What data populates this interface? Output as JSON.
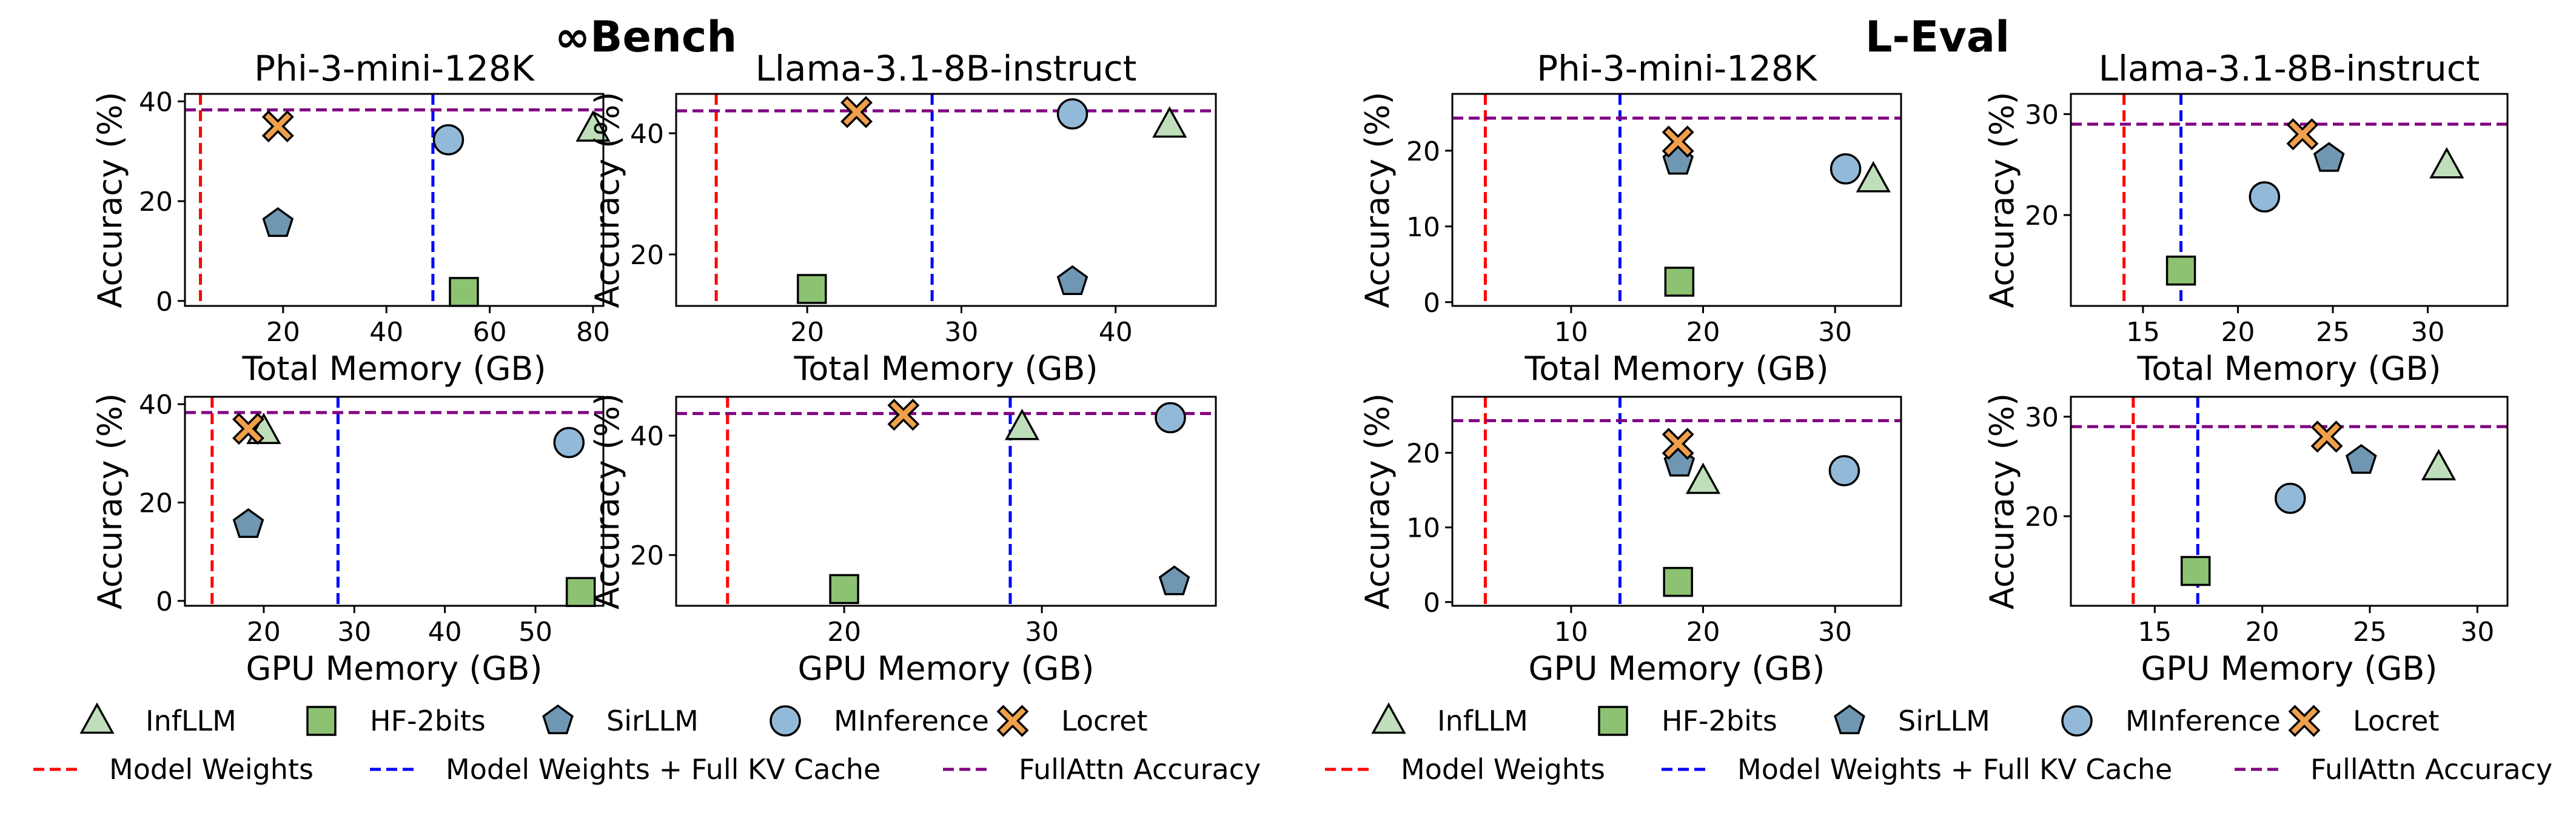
{
  "groups": [
    {
      "title": "∞Bench"
    },
    {
      "title": "L-Eval"
    }
  ],
  "colors": {
    "InfLLM": "#bfdfbb",
    "HF-2bits": "#8dc273",
    "SirLLM": "#6f97b3",
    "MInference": "#93b9d8",
    "Locret": "#f0a04b",
    "model_weights": "#ff0000",
    "full_kv": "#0000ff",
    "fullattn": "#800080"
  },
  "legend": {
    "markers": [
      {
        "name": "InfLLM",
        "shape": "triangle"
      },
      {
        "name": "HF-2bits",
        "shape": "square"
      },
      {
        "name": "SirLLM",
        "shape": "pentagon"
      },
      {
        "name": "MInference",
        "shape": "circle"
      },
      {
        "name": "Locret",
        "shape": "x"
      }
    ],
    "lines": [
      {
        "name": "Model Weights",
        "key": "model_weights"
      },
      {
        "name": "Model Weights + Full KV Cache",
        "key": "full_kv"
      },
      {
        "name": "FullAttn Accuracy",
        "key": "fullattn"
      }
    ]
  },
  "chart_data": [
    {
      "type": "scatter",
      "group": 0,
      "title": "Phi-3-mini-128K",
      "xlabel": "Total Memory (GB)",
      "ylabel": "Accuracy (%)",
      "xlim": [
        1,
        82
      ],
      "ylim": [
        -1,
        41.5
      ],
      "xticks": [
        20,
        40,
        60,
        80
      ],
      "yticks": [
        0,
        20,
        40
      ],
      "vlines": {
        "model_weights": 4,
        "full_kv": 49
      },
      "hline": 38.3,
      "points": [
        {
          "method": "InfLLM",
          "x": 80,
          "y": 34.5
        },
        {
          "method": "HF-2bits",
          "x": 55,
          "y": 1.8
        },
        {
          "method": "SirLLM",
          "x": 19,
          "y": 15.5
        },
        {
          "method": "MInference",
          "x": 52,
          "y": 32.3
        },
        {
          "method": "Locret",
          "x": 19,
          "y": 35
        }
      ]
    },
    {
      "type": "scatter",
      "group": 0,
      "title": "Llama-3.1-8B-instruct",
      "xlabel": "Total Memory (GB)",
      "ylabel": "Accuracy (%)",
      "xlim": [
        11.5,
        46.5
      ],
      "ylim": [
        11.5,
        46.5
      ],
      "xticks": [
        20,
        30,
        40
      ],
      "yticks": [
        20,
        40
      ],
      "vlines": {
        "model_weights": 14.1,
        "full_kv": 28.1
      },
      "hline": 43.7,
      "points": [
        {
          "method": "InfLLM",
          "x": 43.5,
          "y": 41.4
        },
        {
          "method": "HF-2bits",
          "x": 20.3,
          "y": 14.3
        },
        {
          "method": "SirLLM",
          "x": 37.2,
          "y": 15.5
        },
        {
          "method": "MInference",
          "x": 37.2,
          "y": 43.2
        },
        {
          "method": "Locret",
          "x": 23.2,
          "y": 43.5
        }
      ]
    },
    {
      "type": "scatter",
      "group": 1,
      "title": "Phi-3-mini-128K",
      "xlabel": "Total Memory (GB)",
      "ylabel": "Accuracy (%)",
      "xlim": [
        1,
        35
      ],
      "ylim": [
        -0.5,
        27.5
      ],
      "xticks": [
        10,
        20,
        30
      ],
      "yticks": [
        0,
        10,
        20
      ],
      "vlines": {
        "model_weights": 3.5,
        "full_kv": 13.7
      },
      "hline": 24.3,
      "points": [
        {
          "method": "InfLLM",
          "x": 32.9,
          "y": 16.2
        },
        {
          "method": "HF-2bits",
          "x": 18.2,
          "y": 2.7
        },
        {
          "method": "SirLLM",
          "x": 18.1,
          "y": 18.6
        },
        {
          "method": "MInference",
          "x": 30.8,
          "y": 17.6
        },
        {
          "method": "Locret",
          "x": 18.1,
          "y": 21.2
        }
      ]
    },
    {
      "type": "scatter",
      "group": 1,
      "title": "Llama-3.1-8B-instruct",
      "xlabel": "Total Memory (GB)",
      "ylabel": "Accuracy (%)",
      "xlim": [
        11.2,
        34.2
      ],
      "ylim": [
        11,
        32
      ],
      "xticks": [
        15,
        20,
        25,
        30
      ],
      "yticks": [
        20,
        30
      ],
      "vlines": {
        "model_weights": 14,
        "full_kv": 17
      },
      "hline": 29,
      "points": [
        {
          "method": "InfLLM",
          "x": 31,
          "y": 24.9
        },
        {
          "method": "HF-2bits",
          "x": 17,
          "y": 14.5
        },
        {
          "method": "SirLLM",
          "x": 24.8,
          "y": 25.6
        },
        {
          "method": "MInference",
          "x": 21.4,
          "y": 21.8
        },
        {
          "method": "Locret",
          "x": 23.4,
          "y": 28
        }
      ]
    },
    {
      "type": "scatter",
      "group": 0,
      "title": "",
      "xlabel": "GPU Memory (GB)",
      "ylabel": "Accuracy (%)",
      "xlim": [
        11.3,
        57.5
      ],
      "ylim": [
        -1,
        41.5
      ],
      "xticks": [
        20,
        30,
        40,
        50
      ],
      "yticks": [
        0,
        20,
        40
      ],
      "vlines": {
        "model_weights": 14.3,
        "full_kv": 28.2
      },
      "hline": 38.3,
      "points": [
        {
          "method": "InfLLM",
          "x": 20,
          "y": 34.5
        },
        {
          "method": "HF-2bits",
          "x": 55,
          "y": 1.8
        },
        {
          "method": "SirLLM",
          "x": 18.3,
          "y": 15.5
        },
        {
          "method": "MInference",
          "x": 53.7,
          "y": 32.2
        },
        {
          "method": "Locret",
          "x": 18.3,
          "y": 35
        }
      ]
    },
    {
      "type": "scatter",
      "group": 0,
      "title": "",
      "xlabel": "GPU Memory (GB)",
      "ylabel": "Accuracy (%)",
      "xlim": [
        11.5,
        38.8
      ],
      "ylim": [
        11.5,
        46.5
      ],
      "xticks": [
        20,
        30
      ],
      "yticks": [
        20,
        40
      ],
      "vlines": {
        "model_weights": 14.1,
        "full_kv": 28.4
      },
      "hline": 43.7,
      "points": [
        {
          "method": "InfLLM",
          "x": 29,
          "y": 41.4
        },
        {
          "method": "HF-2bits",
          "x": 20,
          "y": 14.3
        },
        {
          "method": "SirLLM",
          "x": 36.7,
          "y": 15.5
        },
        {
          "method": "MInference",
          "x": 36.5,
          "y": 43
        },
        {
          "method": "Locret",
          "x": 23,
          "y": 43.5
        }
      ]
    },
    {
      "type": "scatter",
      "group": 1,
      "title": "",
      "xlabel": "GPU Memory (GB)",
      "ylabel": "Accuracy (%)",
      "xlim": [
        1,
        35
      ],
      "ylim": [
        -0.5,
        27.5
      ],
      "xticks": [
        10,
        20,
        30
      ],
      "yticks": [
        0,
        10,
        20
      ],
      "vlines": {
        "model_weights": 3.5,
        "full_kv": 13.7
      },
      "hline": 24.3,
      "points": [
        {
          "method": "InfLLM",
          "x": 20,
          "y": 16.2
        },
        {
          "method": "HF-2bits",
          "x": 18.1,
          "y": 2.7
        },
        {
          "method": "SirLLM",
          "x": 18.2,
          "y": 18.6
        },
        {
          "method": "MInference",
          "x": 30.7,
          "y": 17.6
        },
        {
          "method": "Locret",
          "x": 18.1,
          "y": 21.2
        }
      ]
    },
    {
      "type": "scatter",
      "group": 1,
      "title": "",
      "xlabel": "GPU Memory (GB)",
      "ylabel": "Accuracy (%)",
      "xlim": [
        11.1,
        31.4
      ],
      "ylim": [
        11,
        32
      ],
      "xticks": [
        15,
        20,
        25,
        30
      ],
      "yticks": [
        20,
        30
      ],
      "vlines": {
        "model_weights": 14,
        "full_kv": 17
      },
      "hline": 29,
      "points": [
        {
          "method": "InfLLM",
          "x": 28.2,
          "y": 24.9
        },
        {
          "method": "HF-2bits",
          "x": 16.9,
          "y": 14.5
        },
        {
          "method": "SirLLM",
          "x": 24.6,
          "y": 25.6
        },
        {
          "method": "MInference",
          "x": 21.3,
          "y": 21.8
        },
        {
          "method": "Locret",
          "x": 23,
          "y": 28
        }
      ]
    }
  ]
}
